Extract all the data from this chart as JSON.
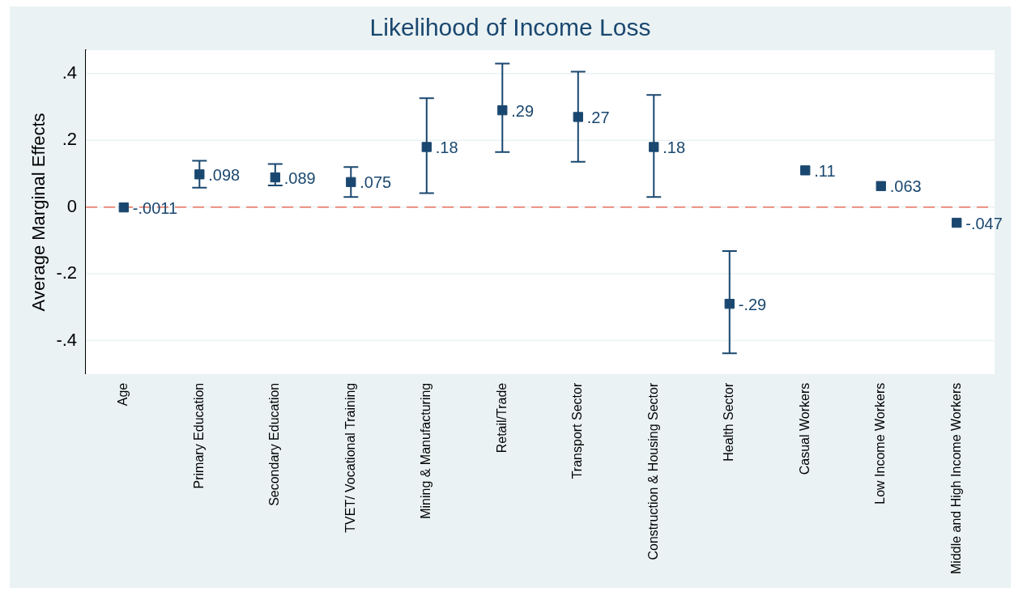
{
  "chart_data": {
    "type": "scatter",
    "title": "Likelihood of Income Loss",
    "ylabel": "Average Marginal Effects",
    "categories": [
      "Age",
      "Primary Education",
      "Secondary Education",
      "TVET/ Vocational Training",
      "Mining & Manufacturing",
      "Retail/Trade",
      "Transport Sector",
      "Construction & Housing Sector",
      "Health Sector",
      "Casual Workers",
      "Low Income Workers",
      "Middle and High Income Workers"
    ],
    "series": [
      {
        "color": "#1a476f",
        "values": [
          -0.0011,
          0.098,
          0.089,
          0.075,
          0.18,
          0.29,
          0.27,
          0.18,
          -0.29,
          0.11,
          0.063,
          -0.047
        ],
        "value_labels": [
          "-.0011",
          ".098",
          ".089",
          ".075",
          ".18",
          ".29",
          ".27",
          ".18",
          "-.29",
          ".11",
          ".063",
          "-.047"
        ],
        "errors": [
          null,
          [
            0.058,
            0.139
          ],
          [
            0.065,
            0.129
          ],
          [
            0.03,
            0.12
          ],
          [
            0.042,
            0.326
          ],
          [
            0.165,
            0.43
          ],
          [
            0.136,
            0.406
          ],
          [
            0.03,
            0.336
          ],
          [
            -0.438,
            -0.132
          ],
          null,
          null,
          null
        ]
      }
    ],
    "ylim": [
      -0.5,
      0.47
    ],
    "yticks": [
      {
        "value": -0.4,
        "label": "-.4"
      },
      {
        "value": -0.2,
        "label": "-.2"
      },
      0,
      {
        "value": 0.2,
        "label": ".2"
      },
      {
        "value": 0.4,
        "label": ".4"
      }
    ],
    "ref_lines": [
      {
        "axis": "y",
        "value": 0,
        "color": "#e8705e",
        "line_style": "dashed"
      }
    ],
    "grid": "y",
    "marker": "square",
    "legend": false
  }
}
